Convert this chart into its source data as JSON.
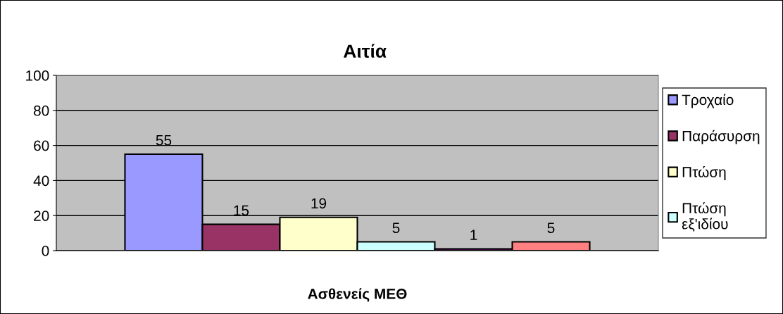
{
  "chart_data": {
    "type": "bar",
    "title": "Αιτία",
    "xlabel": "Ασθενείς ΜΕΘ",
    "categories": [
      null
    ],
    "series": [
      {
        "name": "Τροχαίο",
        "color": "#9999ff",
        "values": [
          55
        ]
      },
      {
        "name": "Παράσυρση",
        "color": "#993366",
        "values": [
          15
        ]
      },
      {
        "name": "Πτώση",
        "color": "#ffffcc",
        "values": [
          19
        ]
      },
      {
        "name": "Πτώση\nεξ'ιδίου",
        "color": "#ccffff",
        "values": [
          5
        ]
      },
      {
        "color": "#660066",
        "values": [
          1
        ]
      },
      {
        "color": "#ff8080",
        "values": [
          5
        ]
      }
    ],
    "ylim": [
      0,
      100
    ],
    "yticks": [
      0,
      20,
      40,
      60,
      80,
      100
    ],
    "grid": "y",
    "legend": "right",
    "data_labels": true
  }
}
